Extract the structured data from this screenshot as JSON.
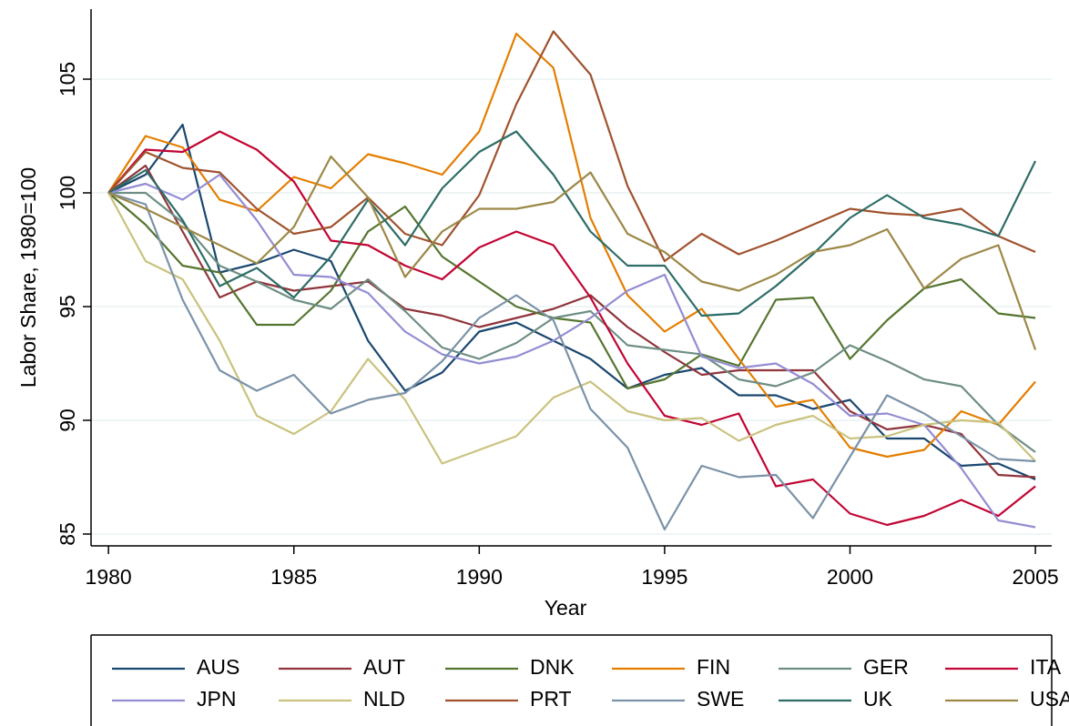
{
  "chart_data": {
    "type": "line",
    "x_label": "Year",
    "y_label": "Labor Share, 1980=100",
    "x": [
      1980,
      1981,
      1982,
      1983,
      1984,
      1985,
      1986,
      1987,
      1988,
      1989,
      1990,
      1991,
      1992,
      1993,
      1994,
      1995,
      1996,
      1997,
      1998,
      1999,
      2000,
      2001,
      2002,
      2003,
      2004,
      2005
    ],
    "xlim": [
      1979.53,
      2005.44
    ],
    "xticks": [
      1980,
      1985,
      1990,
      1995,
      2000,
      2005
    ],
    "ylim": [
      84.48,
      108.08
    ],
    "yticks": [
      85,
      90,
      95,
      100,
      105
    ],
    "grid": true,
    "legend": "bottom",
    "series": [
      {
        "name": "AUS",
        "color": "#1a476f",
        "values": [
          100,
          100.8,
          103,
          96.5,
          96.9,
          97.5,
          97,
          93.5,
          91.3,
          92.1,
          93.9,
          94.3,
          93.5,
          92.7,
          91.4,
          92,
          92.3,
          91.1,
          91.1,
          90.5,
          90.9,
          89.2,
          89.2,
          88,
          88.1,
          87.4
        ]
      },
      {
        "name": "AUT",
        "color": "#90353b",
        "values": [
          100,
          101.2,
          98.3,
          95.4,
          96.1,
          95.7,
          95.9,
          96.1,
          94.9,
          94.6,
          94.1,
          94.5,
          94.9,
          95.5,
          94.1,
          93,
          92,
          92.2,
          92.2,
          92.2,
          90.4,
          89.6,
          89.8,
          89.4,
          87.6,
          87.5
        ]
      },
      {
        "name": "DNK",
        "color": "#55752f",
        "values": [
          100,
          98.6,
          96.8,
          96.5,
          94.2,
          94.2,
          95.7,
          98.3,
          99.4,
          97.2,
          96.1,
          95,
          94.5,
          94.3,
          91.4,
          91.8,
          92.9,
          92.4,
          95.3,
          95.4,
          92.7,
          94.4,
          95.8,
          96.2,
          94.7,
          94.5
        ]
      },
      {
        "name": "FIN",
        "color": "#e37e00",
        "values": [
          100,
          102.5,
          102,
          99.7,
          99.2,
          100.7,
          100.2,
          101.7,
          101.3,
          100.8,
          102.7,
          107,
          105.5,
          98.9,
          95.5,
          93.9,
          94.9,
          92.7,
          90.6,
          90.9,
          88.8,
          88.4,
          88.7,
          90.4,
          89.8,
          91.7
        ]
      },
      {
        "name": "GER",
        "color": "#6e8e84",
        "values": [
          100,
          100,
          98.7,
          96.8,
          96.1,
          95.3,
          94.9,
          96.2,
          94.8,
          93.2,
          92.7,
          93.4,
          94.5,
          94.8,
          93.3,
          93.1,
          92.9,
          91.8,
          91.5,
          92.1,
          93.3,
          92.6,
          91.8,
          91.5,
          89.8,
          88.6
        ]
      },
      {
        "name": "ITA",
        "color": "#c10534",
        "values": [
          100,
          101.9,
          101.8,
          102.7,
          101.9,
          100.5,
          97.9,
          97.7,
          96.8,
          96.2,
          97.6,
          98.3,
          97.7,
          95.4,
          92.5,
          90.2,
          89.8,
          90.3,
          87.1,
          87.4,
          85.9,
          85.4,
          85.8,
          86.5,
          85.8,
          87.1
        ]
      },
      {
        "name": "JPN",
        "color": "#938dd2",
        "values": [
          100,
          100.4,
          99.7,
          100.8,
          98.8,
          96.4,
          96.3,
          95.6,
          93.9,
          92.9,
          92.5,
          92.8,
          93.5,
          94.5,
          95.7,
          96.4,
          92.8,
          92.3,
          92.5,
          91.6,
          90.2,
          90.3,
          89.8,
          87.9,
          85.6,
          85.3
        ]
      },
      {
        "name": "NLD",
        "color": "#cac27e",
        "values": [
          100,
          97,
          96.2,
          93.5,
          90.2,
          89.4,
          90.4,
          92.7,
          90.9,
          88.1,
          88.7,
          89.3,
          91,
          91.7,
          90.4,
          90,
          90.1,
          89.1,
          89.8,
          90.2,
          89.2,
          89.3,
          89.8,
          90,
          89.9,
          88.2
        ]
      },
      {
        "name": "PRT",
        "color": "#a0522d",
        "values": [
          100,
          101.8,
          101.1,
          100.9,
          99.3,
          98.2,
          98.5,
          99.8,
          98.2,
          97.7,
          99.9,
          103.9,
          107.1,
          105.2,
          100.3,
          97,
          98.2,
          97.3,
          97.9,
          98.6,
          99.3,
          99.1,
          99,
          99.3,
          98.1,
          97.4
        ]
      },
      {
        "name": "SWE",
        "color": "#7b92a8",
        "values": [
          100,
          99.5,
          95.3,
          92.2,
          91.3,
          92,
          90.3,
          90.9,
          91.2,
          92.6,
          94.5,
          95.5,
          94.4,
          90.5,
          88.8,
          85.2,
          88,
          87.5,
          87.6,
          85.7,
          88.4,
          91.1,
          90.3,
          89.3,
          88.3,
          88.2
        ]
      },
      {
        "name": "UK",
        "color": "#2d6d66",
        "values": [
          100,
          101,
          98.8,
          95.9,
          96.7,
          95.4,
          97.2,
          99.7,
          97.7,
          100.2,
          101.8,
          102.7,
          100.8,
          98.3,
          96.8,
          96.8,
          94.6,
          94.7,
          95.9,
          97.3,
          98.9,
          99.9,
          98.9,
          98.6,
          98.1,
          101.4
        ]
      },
      {
        "name": "USA",
        "color": "#9c8847",
        "values": [
          100,
          99.3,
          98.5,
          97.7,
          96.9,
          98.5,
          101.6,
          99.8,
          96.3,
          98.3,
          99.3,
          99.3,
          99.6,
          100.9,
          98.2,
          97.4,
          96.1,
          95.7,
          96.4,
          97.4,
          97.7,
          98.4,
          95.8,
          97.1,
          97.7,
          93.1
        ]
      }
    ]
  }
}
